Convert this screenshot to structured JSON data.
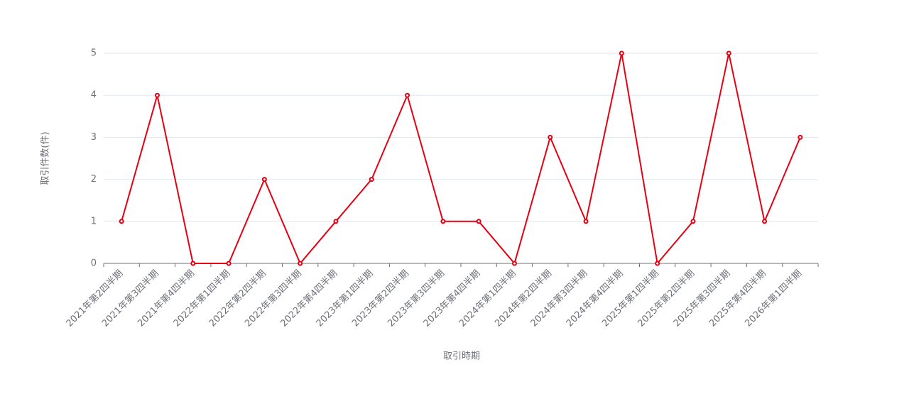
{
  "chart_data": {
    "type": "line",
    "x_label": "取引時期",
    "y_label": "取引件数(件)",
    "categories": [
      "2021年第2四半期",
      "2021年第3四半期",
      "2021年第4四半期",
      "2022年第1四半期",
      "2022年第2四半期",
      "2022年第3四半期",
      "2022年第4四半期",
      "2023年第1四半期",
      "2023年第2四半期",
      "2023年第3四半期",
      "2023年第4四半期",
      "2024年第1四半期",
      "2024年第2四半期",
      "2024年第3四半期",
      "2024年第4四半期",
      "2025年第1四半期",
      "2025年第2四半期",
      "2025年第3四半期",
      "2025年第4四半期",
      "2026年第1四半期"
    ],
    "values": [
      1,
      4,
      0,
      0,
      2,
      0,
      1,
      2,
      4,
      1,
      1,
      0,
      3,
      1,
      5,
      0,
      1,
      5,
      1,
      3
    ],
    "color": "#e60012",
    "ylim": [
      0,
      5
    ],
    "yticks": [
      0,
      1,
      2,
      3,
      4,
      5
    ],
    "grid": true
  }
}
